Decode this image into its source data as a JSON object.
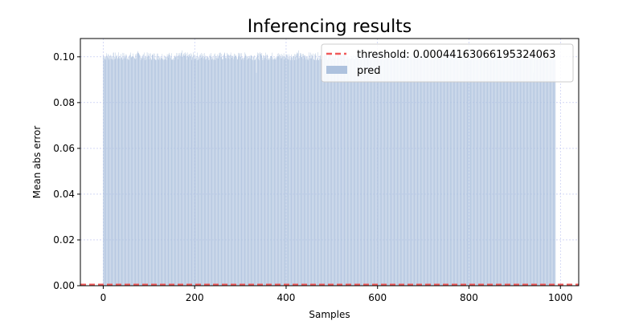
{
  "chart_data": {
    "type": "bar",
    "title": "Inferencing results",
    "xlabel": "Samples",
    "ylabel": "Mean abs error",
    "xlim": [
      -50,
      1040
    ],
    "ylim": [
      0,
      0.108
    ],
    "xticks": [
      0,
      200,
      400,
      600,
      800,
      1000
    ],
    "yticks": [
      0.0,
      0.02,
      0.04,
      0.06,
      0.08,
      0.1
    ],
    "xtick_labels": [
      "0",
      "200",
      "400",
      "600",
      "800",
      "1000"
    ],
    "ytick_labels": [
      "0.00",
      "0.02",
      "0.04",
      "0.06",
      "0.08",
      "0.10"
    ],
    "grid": true,
    "legend_position": "upper-right",
    "colors": {
      "pred": "#aec2de",
      "threshold": "#f05a5a",
      "grid": "#b8c0f0"
    },
    "series": [
      {
        "name": "pred",
        "type": "bar",
        "x_start": 0,
        "x_end": 989,
        "y_typical": 0.1,
        "y_range": [
          0.093,
          0.103
        ],
        "y_extremes": [
          {
            "x": 76,
            "y": 0.1025
          },
          {
            "x": 172,
            "y": 0.1028
          },
          {
            "x": 265,
            "y": 0.1015
          },
          {
            "x": 335,
            "y": 0.093
          },
          {
            "x": 427,
            "y": 0.1028
          },
          {
            "x": 940,
            "y": 0.093
          }
        ]
      },
      {
        "name": "threshold: 0.00044163066195324063",
        "type": "hline",
        "y": 0.00044163066195324063,
        "style": "dashed"
      }
    ]
  }
}
